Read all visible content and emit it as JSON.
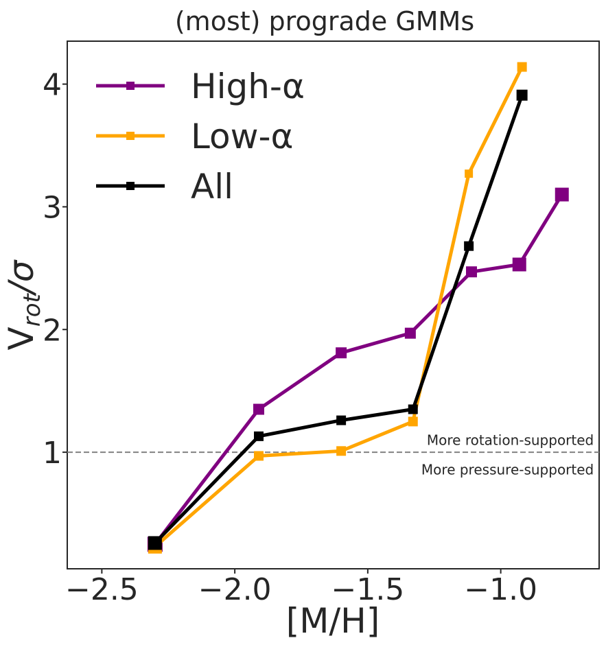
{
  "chart_data": {
    "type": "line",
    "title": "(most) prograde GMMs",
    "xlabel": "[M/H]",
    "ylabel": "V_rot/σ",
    "ylabel_parts": {
      "main": "V",
      "sub": "rot",
      "rest": "/σ"
    },
    "xlim": [
      -2.63,
      -0.63
    ],
    "ylim": [
      0.05,
      4.35
    ],
    "xticks": [
      -2.5,
      -2.0,
      -1.5,
      -1.0
    ],
    "xtick_labels": [
      "−2.5",
      "−2.0",
      "−1.5",
      "−1.0"
    ],
    "yticks": [
      1,
      2,
      3,
      4
    ],
    "ytick_labels": [
      "1",
      "2",
      "3",
      "4"
    ],
    "grid": false,
    "legend": {
      "placement": "top-left",
      "entries": [
        "High-α",
        "Low-α",
        "All"
      ]
    },
    "reference_line": {
      "y": 1,
      "style": "dashed",
      "color": "#808080"
    },
    "annotations": [
      {
        "text": "More rotation-supported",
        "x": -0.65,
        "y": 1.06,
        "anchor": "end"
      },
      {
        "text": "More pressure-supported",
        "x": -0.65,
        "y": 0.82,
        "anchor": "end"
      }
    ],
    "series": [
      {
        "name": "High-α",
        "color": "#800080",
        "x": [
          -2.3,
          -1.91,
          -1.6,
          -1.34,
          -1.11,
          -0.93,
          -0.77
        ],
        "y": [
          0.25,
          1.35,
          1.81,
          1.97,
          2.47,
          2.53,
          3.1
        ],
        "marker_sizes": [
          22,
          16,
          16,
          16,
          16,
          20,
          20
        ]
      },
      {
        "name": "Low-α",
        "color": "#FFA500",
        "x": [
          -2.3,
          -1.91,
          -1.6,
          -1.33,
          -1.12,
          -0.92
        ],
        "y": [
          0.23,
          0.97,
          1.01,
          1.25,
          3.27,
          4.14
        ],
        "marker_sizes": [
          20,
          14,
          14,
          14,
          12,
          14
        ]
      },
      {
        "name": "All",
        "color": "#000000",
        "x": [
          -2.3,
          -1.91,
          -1.6,
          -1.33,
          -1.12,
          -0.92
        ],
        "y": [
          0.26,
          1.13,
          1.26,
          1.35,
          2.68,
          3.91
        ],
        "marker_sizes": [
          20,
          14,
          14,
          14,
          14,
          16
        ]
      }
    ]
  }
}
